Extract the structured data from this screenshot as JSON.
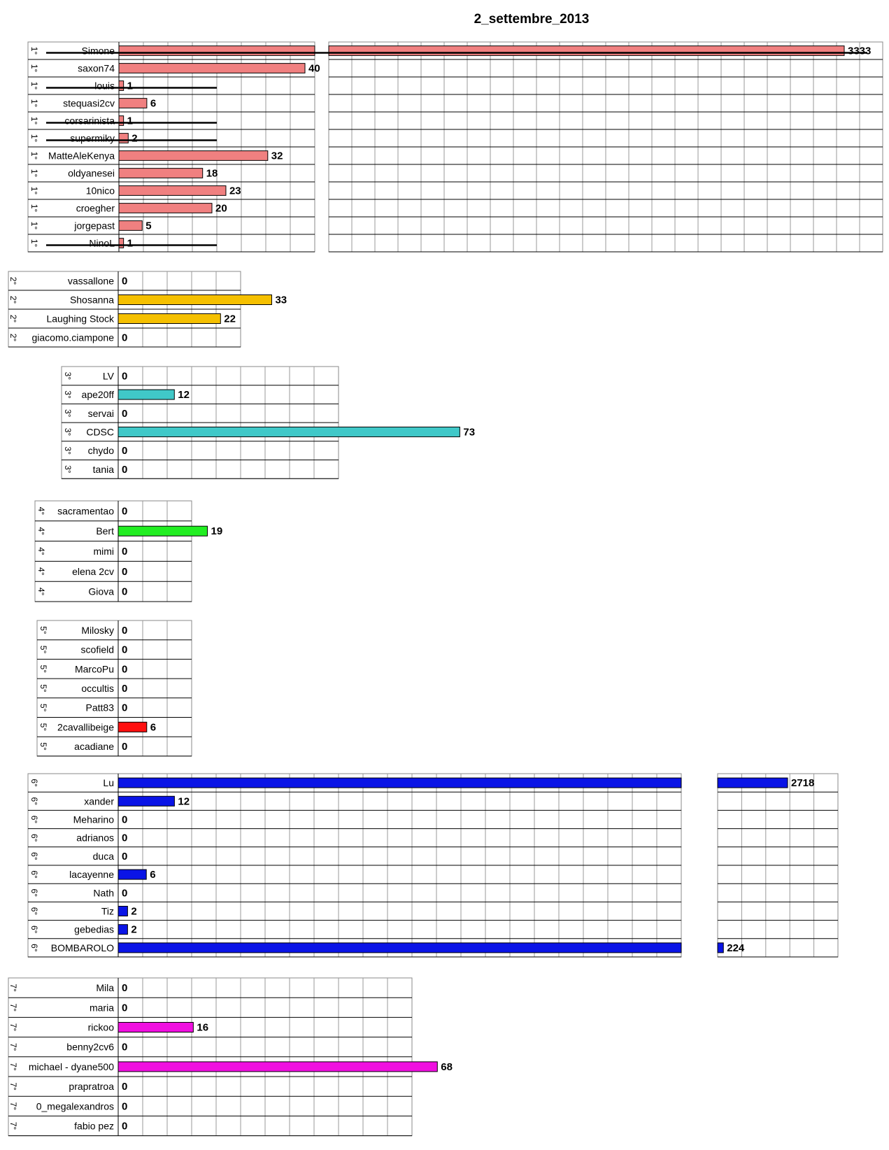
{
  "title": "2_settembre_2013",
  "chart_data": {
    "type": "bar",
    "orientation": "horizontal",
    "title": "2_settembre_2013",
    "groups": [
      {
        "rank": "1°",
        "color": "#f08080",
        "rows": [
          {
            "name": "Simone",
            "value": 3333,
            "struck": true
          },
          {
            "name": "saxon74",
            "value": 40
          },
          {
            "name": "louis",
            "value": 1,
            "struck": true
          },
          {
            "name": "stequasi2cv",
            "value": 6
          },
          {
            "name": "corsarinista",
            "value": 1,
            "struck": true
          },
          {
            "name": "supermiky",
            "value": 2,
            "struck": true
          },
          {
            "name": "MatteAleKenya",
            "value": 32
          },
          {
            "name": "oldyanesei",
            "value": 18
          },
          {
            "name": "10nico",
            "value": 23
          },
          {
            "name": "croegher",
            "value": 20
          },
          {
            "name": "jorgepast",
            "value": 5
          },
          {
            "name": "NinoL",
            "value": 1,
            "struck": true
          }
        ]
      },
      {
        "rank": "2°",
        "color": "#f5c000",
        "rows": [
          {
            "name": "vassallone",
            "value": 0
          },
          {
            "name": "Shosanna",
            "value": 33
          },
          {
            "name": "Laughing Stock",
            "value": 22
          },
          {
            "name": "giacomo.ciampone",
            "value": 0
          }
        ]
      },
      {
        "rank": "3°",
        "color": "#40c8c8",
        "rows": [
          {
            "name": "LV",
            "value": 0
          },
          {
            "name": "ape20ff",
            "value": 12
          },
          {
            "name": "servai",
            "value": 0
          },
          {
            "name": "CDSC",
            "value": 73
          },
          {
            "name": "chydo",
            "value": 0
          },
          {
            "name": "tania",
            "value": 0
          }
        ]
      },
      {
        "rank": "4°",
        "color": "#22ee22",
        "rows": [
          {
            "name": "sacramentao",
            "value": 0
          },
          {
            "name": "Bert",
            "value": 19
          },
          {
            "name": "mimi",
            "value": 0
          },
          {
            "name": "elena 2cv",
            "value": 0
          },
          {
            "name": "Giova",
            "value": 0
          }
        ]
      },
      {
        "rank": "5°",
        "color": "#ff1010",
        "rows": [
          {
            "name": "Milosky",
            "value": 0
          },
          {
            "name": "scofield",
            "value": 0
          },
          {
            "name": "MarcoPu",
            "value": 0
          },
          {
            "name": "occultis",
            "value": 0
          },
          {
            "name": "Patt83",
            "value": 0
          },
          {
            "name": "2cavallibeige",
            "value": 6
          },
          {
            "name": "acadiane",
            "value": 0
          }
        ]
      },
      {
        "rank": "6°",
        "color": "#0a14e6",
        "rows": [
          {
            "name": "Lu",
            "value": 2718
          },
          {
            "name": "xander",
            "value": 12
          },
          {
            "name": "Meharino",
            "value": 0
          },
          {
            "name": "adrianos",
            "value": 0
          },
          {
            "name": "duca",
            "value": 0
          },
          {
            "name": "lacayenne",
            "value": 6
          },
          {
            "name": "Nath",
            "value": 0
          },
          {
            "name": "Tiz",
            "value": 2
          },
          {
            "name": "gebedias",
            "value": 2
          },
          {
            "name": "BOMBAROLO",
            "value": 224
          }
        ]
      },
      {
        "rank": "7°",
        "color": "#f010e0",
        "rows": [
          {
            "name": "Mila",
            "value": 0
          },
          {
            "name": "maria",
            "value": 0
          },
          {
            "name": "rickoo",
            "value": 16
          },
          {
            "name": "benny2cv6",
            "value": 0
          },
          {
            "name": "michael - dyane500",
            "value": 68
          },
          {
            "name": "prapratroa",
            "value": 0
          },
          {
            "name": "0_megalexandros",
            "value": 0
          },
          {
            "name": "fabio pez",
            "value": 0
          }
        ]
      }
    ]
  }
}
